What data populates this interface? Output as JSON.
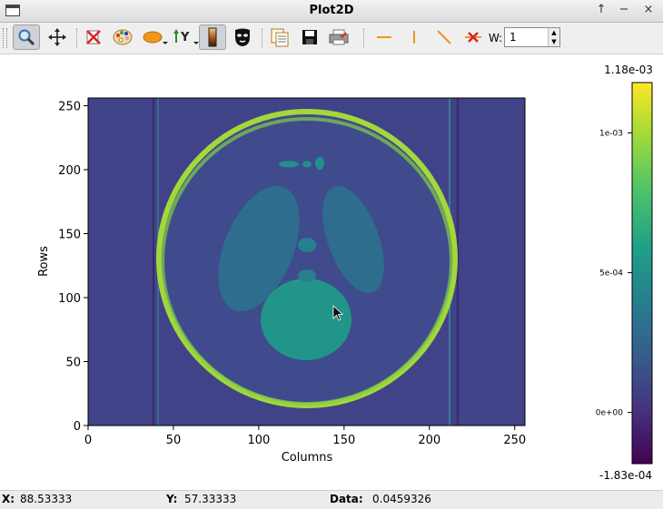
{
  "window": {
    "title": "Plot2D",
    "controls": [
      "↑",
      "−",
      "×"
    ]
  },
  "toolbar": {
    "buttons": [
      {
        "name": "zoom-mode",
        "icon": "magnifier-icon",
        "active": true
      },
      {
        "name": "pan-mode",
        "icon": "pan-arrows-icon",
        "active": false
      },
      {
        "name": "reset-zoom",
        "icon": "zoom-reset-icon",
        "active": false
      },
      {
        "name": "colormap",
        "icon": "palette-icon",
        "active": false
      },
      {
        "name": "aspect-ratio",
        "icon": "ellipse-icon",
        "active": false
      },
      {
        "name": "y-axis-orientation",
        "icon": "y-axis-icon",
        "active": false
      },
      {
        "name": "colorbar-toggle",
        "icon": "colorbar-icon",
        "active": true
      },
      {
        "name": "mask-tool",
        "icon": "mask-icon",
        "active": false
      },
      {
        "name": "copy",
        "icon": "copy-icon",
        "active": false
      },
      {
        "name": "save",
        "icon": "save-icon",
        "active": false
      },
      {
        "name": "print",
        "icon": "print-icon",
        "active": false
      },
      {
        "name": "horizontal-profile",
        "icon": "horizontal-line-icon",
        "active": false
      },
      {
        "name": "vertical-profile",
        "icon": "vertical-line-icon",
        "active": false
      },
      {
        "name": "line-profile",
        "icon": "diagonal-line-icon",
        "active": false
      },
      {
        "name": "clear-profile",
        "icon": "clear-profile-icon",
        "active": false
      }
    ],
    "width_label": "W:",
    "width_value": "1"
  },
  "plot": {
    "xlabel": "Columns",
    "ylabel": "Rows",
    "xticks": [
      "0",
      "50",
      "100",
      "150",
      "200",
      "250"
    ],
    "yticks": [
      "0",
      "50",
      "100",
      "150",
      "200",
      "250"
    ],
    "colorbar": {
      "max_label": "1.18e-03",
      "min_label": "-1.83e-04",
      "ticks": [
        "1e-03",
        "5e-04",
        "0e+00"
      ]
    }
  },
  "chart_data": {
    "type": "heatmap",
    "title": "",
    "xlabel": "Columns",
    "ylabel": "Rows",
    "xlim": [
      0,
      256
    ],
    "ylim": [
      0,
      256
    ],
    "xticks": [
      0,
      50,
      100,
      150,
      200,
      250
    ],
    "yticks": [
      0,
      50,
      100,
      150,
      200,
      250
    ],
    "colormap": "viridis",
    "value_range": [
      -0.000183,
      0.00118
    ],
    "colorbar_ticks": [
      0.001,
      0.0005,
      0.0
    ],
    "description_shapes": "Shepp-Logan phantom reconstruction"
  },
  "status": {
    "x_label": "X:",
    "x_value": "88.53333",
    "y_label": "Y:",
    "y_value": "57.33333",
    "data_label": "Data:",
    "data_value": "0.0459326"
  }
}
